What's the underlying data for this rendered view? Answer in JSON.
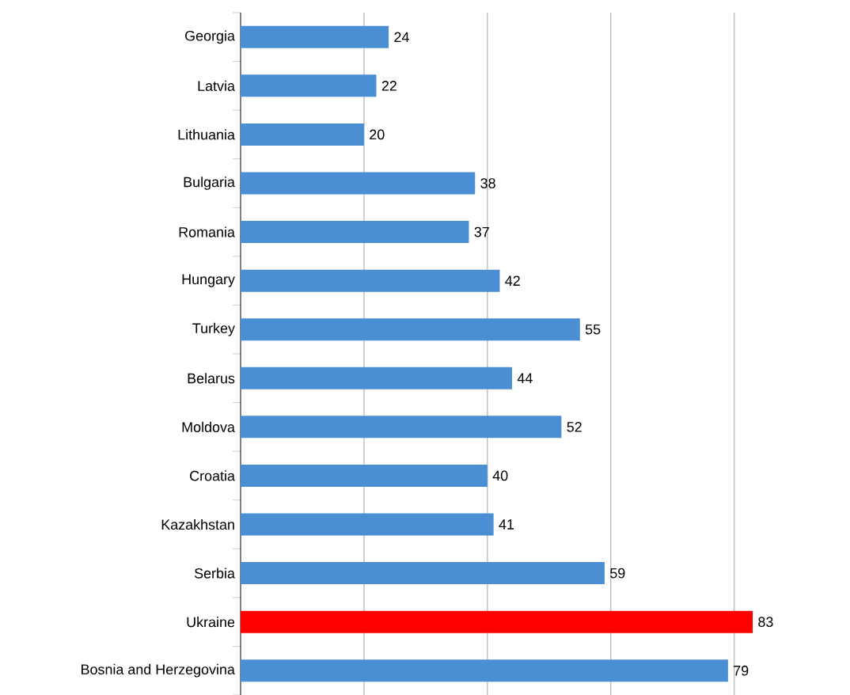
{
  "chart_data": {
    "type": "bar",
    "orientation": "horizontal",
    "categories": [
      "Georgia",
      "Latvia",
      "Lithuania",
      "Bulgaria",
      "Romania",
      "Hungary",
      "Turkey",
      "Belarus",
      "Moldova",
      "Croatia",
      "Kazakhstan",
      "Serbia",
      "Ukraine",
      "Bosnia and Herzegovina"
    ],
    "values": [
      24,
      22,
      20,
      38,
      37,
      42,
      55,
      44,
      52,
      40,
      41,
      59,
      83,
      79
    ],
    "colors": [
      "#4a8fd4",
      "#4a8fd4",
      "#4a8fd4",
      "#4a8fd4",
      "#4a8fd4",
      "#4a8fd4",
      "#4a8fd4",
      "#4a8fd4",
      "#4a8fd4",
      "#4a8fd4",
      "#4a8fd4",
      "#4a8fd4",
      "#ff0000",
      "#4a8fd4"
    ],
    "grid": "x",
    "data_labels": true,
    "tick_labels": "y"
  }
}
